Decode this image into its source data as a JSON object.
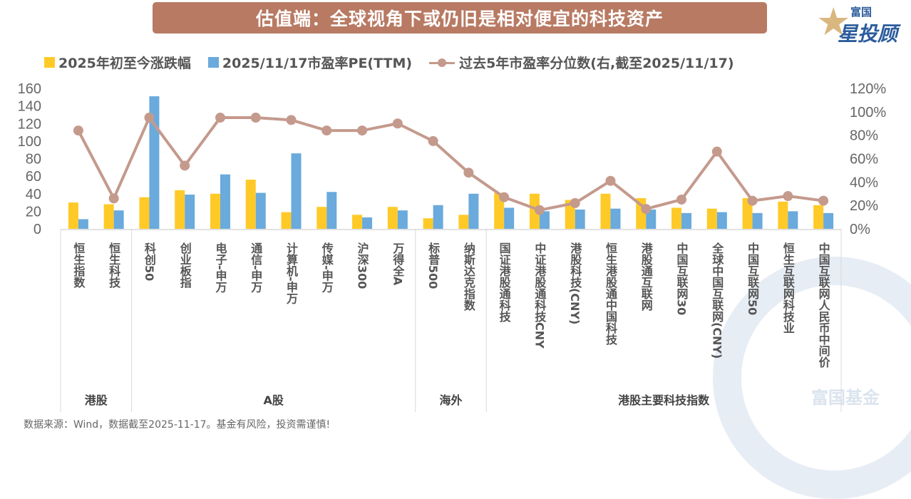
{
  "header": {
    "title": "估值端：全球视角下或仍旧是相对便宜的科技资产",
    "logo_top": "富国",
    "logo_main": "星投顾"
  },
  "watermark": "富国基金",
  "source_note": "数据来源：Wind，数据截至2025-11-17。基金有风险，投资需谨慎!",
  "colors": {
    "ytd": "#ffca28",
    "pe": "#6aaadc",
    "pct": "#c49a8d"
  },
  "chart_data": {
    "type": "bar+line",
    "legend_position": "top",
    "categories": [
      "恒生指数",
      "恒生科技",
      "科创50",
      "创业板指",
      "电子-申万",
      "通信-申万",
      "计算机-申万",
      "传媒-申万",
      "沪深300",
      "万得全A",
      "标普500",
      "纳斯达克指数",
      "国证港股通科技",
      "中证港股通科技CNY",
      "港股科技(CNY)",
      "恒生港股通中国科技",
      "港股通互联网",
      "中国互联网30",
      "全球中国互联网(CNY)",
      "中国互联网50",
      "恒生互联网科技业",
      "中国互联网人民币中间价"
    ],
    "groups": [
      {
        "label": "港股",
        "count": 2
      },
      {
        "label": "A股",
        "count": 8
      },
      {
        "label": "海外",
        "count": 2
      },
      {
        "label": "港股主要科技指数",
        "count": 10
      }
    ],
    "series": [
      {
        "name": "2025年初至今涨跌幅",
        "axis": "left",
        "type": "bar",
        "values": [
          30,
          28,
          36,
          44,
          40,
          56,
          19,
          25,
          16,
          25,
          12,
          16,
          41,
          40,
          33,
          40,
          35,
          24,
          23,
          35,
          31,
          27
        ]
      },
      {
        "name": "2025/11/17市盈率PE(TTM)",
        "axis": "left",
        "type": "bar",
        "values": [
          11,
          21,
          151,
          39,
          62,
          41,
          86,
          42,
          13,
          21,
          27,
          40,
          24,
          20,
          22,
          23,
          22,
          18,
          19,
          18,
          20,
          18
        ]
      },
      {
        "name": "过去5年市盈率分位数(右,截至2025/11/17)",
        "axis": "right",
        "type": "line",
        "values": [
          84,
          26,
          95,
          54,
          95,
          95,
          93,
          84,
          84,
          90,
          75,
          48,
          27,
          16,
          22,
          41,
          17,
          25,
          66,
          24,
          28,
          24
        ]
      }
    ],
    "left_axis": {
      "ylim": [
        0,
        160
      ],
      "ticks": [
        "0",
        "20",
        "40",
        "60",
        "80",
        "100",
        "120",
        "140",
        "160"
      ]
    },
    "right_axis": {
      "ylim": [
        0,
        120
      ],
      "ticks": [
        "0%",
        "20%",
        "40%",
        "60%",
        "80%",
        "100%",
        "120%"
      ]
    }
  }
}
